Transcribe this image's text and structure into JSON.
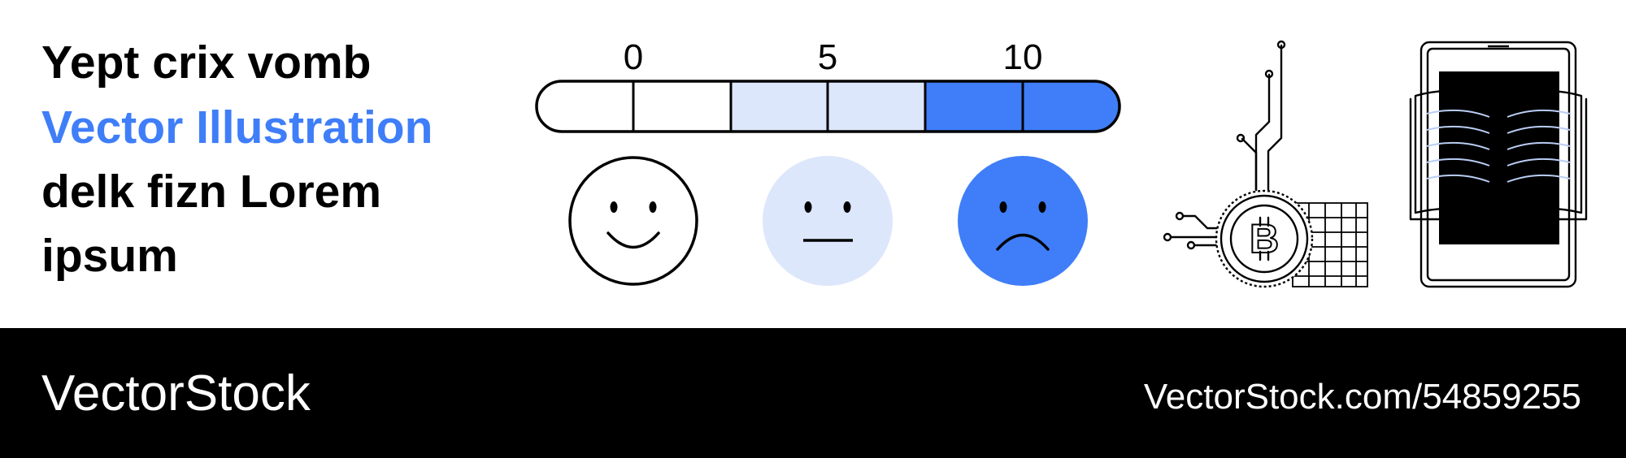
{
  "header": {
    "lines": [
      "Yept crix vomb",
      "Vector Illustration",
      "delk fizn Lorem",
      "ipsum"
    ]
  },
  "scale": {
    "labels": [
      0,
      5,
      10
    ]
  },
  "footer": {
    "brand": "VectorStock",
    "url": "VectorStock.com/54859255"
  }
}
